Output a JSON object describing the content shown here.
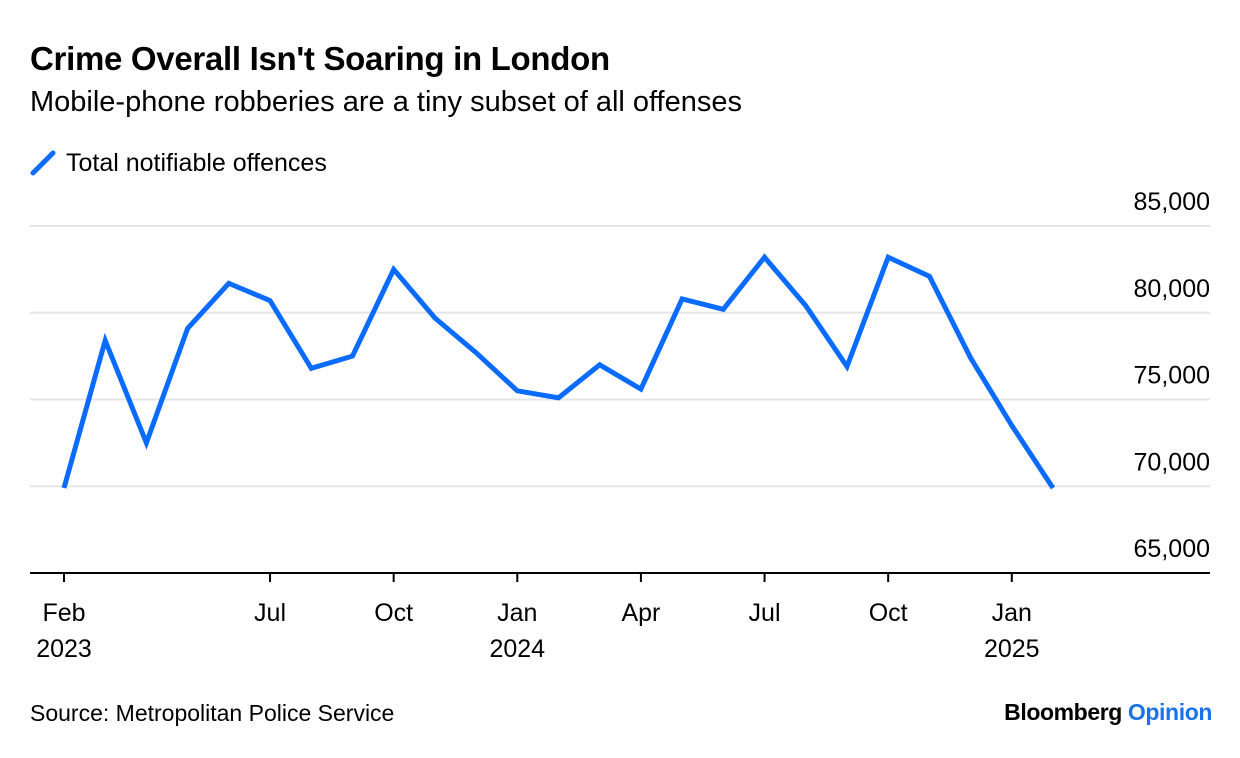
{
  "title": "Crime Overall Isn't Soaring in London",
  "subtitle": "Mobile-phone robberies are a tiny subset of all offenses",
  "legend": {
    "label": "Total notifiable offences",
    "color": "#0a6cff"
  },
  "source": "Source: Metropolitan Police Service",
  "brand": {
    "name": "Bloomberg",
    "suffix": "Opinion",
    "suffix_color": "#1a73e8"
  },
  "chart_data": {
    "type": "line",
    "title": "Crime Overall Isn't Soaring in London",
    "xlabel": "",
    "ylabel": "",
    "ylim": [
      65000,
      85000
    ],
    "yticks": [
      {
        "value": 85000,
        "label": "85,000"
      },
      {
        "value": 80000,
        "label": "80,000"
      },
      {
        "value": 75000,
        "label": "75,000"
      },
      {
        "value": 70000,
        "label": "70,000"
      },
      {
        "value": 65000,
        "label": "65,000"
      }
    ],
    "grid": true,
    "x": [
      "2023-02",
      "2023-03",
      "2023-04",
      "2023-05",
      "2023-06",
      "2023-07",
      "2023-08",
      "2023-09",
      "2023-10",
      "2023-11",
      "2023-12",
      "2024-01",
      "2024-02",
      "2024-03",
      "2024-04",
      "2024-05",
      "2024-06",
      "2024-07",
      "2024-08",
      "2024-09",
      "2024-10",
      "2024-11",
      "2024-12",
      "2025-01",
      "2025-02"
    ],
    "xticks": [
      {
        "index": 0,
        "label": "Feb",
        "sublabel": "2023"
      },
      {
        "index": 5,
        "label": "Jul",
        "sublabel": ""
      },
      {
        "index": 8,
        "label": "Oct",
        "sublabel": ""
      },
      {
        "index": 11,
        "label": "Jan",
        "sublabel": "2024"
      },
      {
        "index": 14,
        "label": "Apr",
        "sublabel": ""
      },
      {
        "index": 17,
        "label": "Jul",
        "sublabel": ""
      },
      {
        "index": 20,
        "label": "Oct",
        "sublabel": ""
      },
      {
        "index": 23,
        "label": "Jan",
        "sublabel": "2025"
      }
    ],
    "series": [
      {
        "name": "Total notifiable offences",
        "color": "#0a6cff",
        "values": [
          69900,
          78400,
          72500,
          79100,
          81700,
          80700,
          76800,
          77500,
          82500,
          79700,
          77700,
          75500,
          75100,
          77000,
          75600,
          80800,
          80200,
          83200,
          80400,
          76900,
          83200,
          82100,
          77400,
          73500,
          69900
        ]
      }
    ]
  }
}
